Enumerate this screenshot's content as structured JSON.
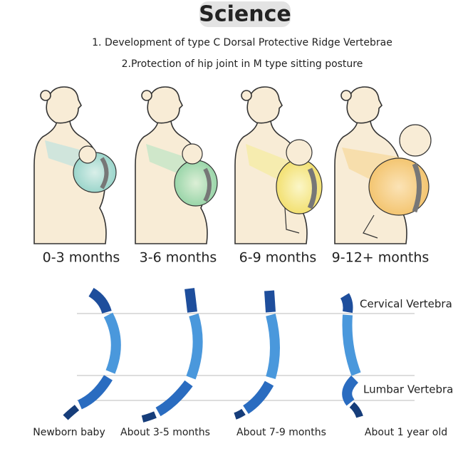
{
  "header": {
    "title": "Science",
    "points": [
      "1. Development of type C Dorsal Protective Ridge Vertebrae",
      "2.Protection of hip joint in M type sitting posture"
    ]
  },
  "carry_stages": [
    "0-3 months",
    "3-6 months",
    "6-9 months",
    "9-12+ months"
  ],
  "spine": {
    "labels": [
      "Cervical Vertebra",
      "Lumbar Vertebra"
    ],
    "stages": [
      "Newborn baby",
      "About 3-5 months",
      "About 7-9 months",
      "About 1 year old"
    ]
  }
}
